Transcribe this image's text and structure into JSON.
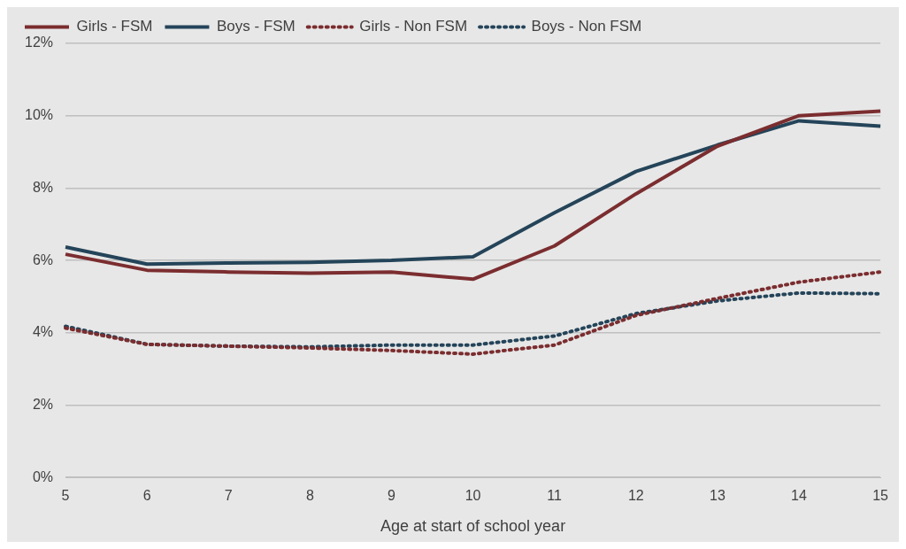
{
  "chart_data": {
    "type": "line",
    "xlabel": "Age at start of school year",
    "categories": [
      "5",
      "6",
      "7",
      "8",
      "9",
      "10",
      "11",
      "12",
      "13",
      "14",
      "15"
    ],
    "ylim": [
      0,
      12
    ],
    "yticks": [
      {
        "value": 0,
        "label": "0%"
      },
      {
        "value": 2,
        "label": "2%"
      },
      {
        "value": 4,
        "label": "4%"
      },
      {
        "value": 6,
        "label": "6%"
      },
      {
        "value": 8,
        "label": "8%"
      },
      {
        "value": 10,
        "label": "10%"
      },
      {
        "value": 12,
        "label": "12%"
      }
    ],
    "grid": "y",
    "legend": "top left",
    "marker": "none",
    "series": [
      {
        "name": "Girls - FSM",
        "color": "#7b2d2f",
        "line_style": "solid",
        "values": [
          6.17,
          5.73,
          5.68,
          5.65,
          5.68,
          5.48,
          6.4,
          7.84,
          9.16,
          10.0,
          10.13
        ]
      },
      {
        "name": "Boys - FSM",
        "color": "#244459",
        "line_style": "solid",
        "values": [
          6.37,
          5.9,
          5.93,
          5.95,
          6.0,
          6.1,
          7.32,
          8.46,
          9.19,
          9.86,
          9.71
        ]
      },
      {
        "name": "Girls - Non FSM",
        "color": "#7b2d2f",
        "line_style": "dotted",
        "values": [
          4.13,
          3.68,
          3.63,
          3.58,
          3.51,
          3.41,
          3.66,
          4.48,
          4.95,
          5.4,
          5.68
        ]
      },
      {
        "name": "Boys - Non FSM",
        "color": "#244459",
        "line_style": "dotted",
        "values": [
          4.18,
          3.68,
          3.63,
          3.61,
          3.66,
          3.66,
          3.91,
          4.53,
          4.88,
          5.1,
          5.08
        ]
      }
    ]
  }
}
